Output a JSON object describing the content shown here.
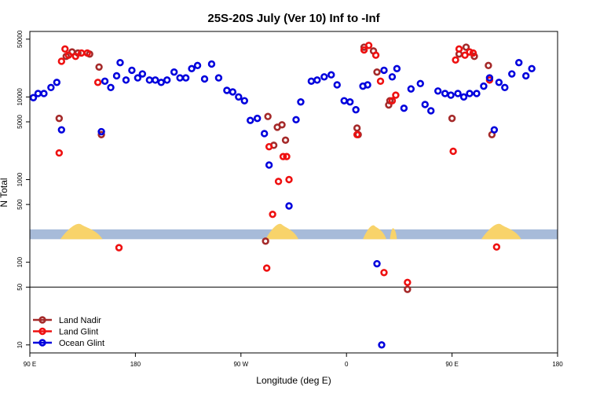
{
  "chart_data": {
    "type": "scatter",
    "title": "25S-20S July (Ver 10)   Inf to -Inf",
    "xlabel": "Longitude (deg E)",
    "ylabel": "N Total",
    "x_scale": "linear",
    "y_scale": "log",
    "xlim": [
      90,
      540
    ],
    "ylim": [
      8,
      62000
    ],
    "x_ticks": [
      {
        "value": 90,
        "label": "90 E"
      },
      {
        "value": 180,
        "label": "180"
      },
      {
        "value": 270,
        "label": "90 W"
      },
      {
        "value": 360,
        "label": "0"
      },
      {
        "value": 450,
        "label": "90 E"
      },
      {
        "value": 540,
        "label": "180"
      }
    ],
    "y_ticks": [
      {
        "value": 10,
        "label": "10"
      },
      {
        "value": 50,
        "label": "50"
      },
      {
        "value": 100,
        "label": "100"
      },
      {
        "value": 500,
        "label": "500"
      },
      {
        "value": 1000,
        "label": "1000"
      },
      {
        "value": 5000,
        "label": "5000"
      },
      {
        "value": 10000,
        "label": "10000"
      },
      {
        "value": 50000,
        "label": "50000"
      }
    ],
    "reference_line_y": 50,
    "map_band": {
      "y_range": [
        190,
        250
      ],
      "ocean_color": "#a7bbd9",
      "land_color": "#f8d36a",
      "land_segments": [
        [
          116,
          152
        ],
        [
          291,
          319
        ],
        [
          374,
          394
        ],
        [
          397,
          403
        ],
        [
          475,
          509
        ]
      ]
    },
    "legend_position": "bottom-left",
    "series": [
      {
        "name": "Land Nadir",
        "color": "#a52a2a",
        "points": [
          [
            115,
            5500
          ],
          [
            121,
            31000
          ],
          [
            126,
            35000
          ],
          [
            131,
            34000
          ],
          [
            141,
            33000
          ],
          [
            149,
            23000
          ],
          [
            151,
            3500
          ],
          [
            291,
            180
          ],
          [
            293,
            5800
          ],
          [
            298,
            2600
          ],
          [
            301,
            4300
          ],
          [
            305,
            4600
          ],
          [
            308,
            3000
          ],
          [
            369,
            4200
          ],
          [
            370,
            3500
          ],
          [
            375,
            40000
          ],
          [
            383,
            36000
          ],
          [
            386,
            20000
          ],
          [
            396,
            8000
          ],
          [
            397,
            9000
          ],
          [
            412,
            47
          ],
          [
            450,
            5500
          ],
          [
            456,
            33000
          ],
          [
            462,
            40000
          ],
          [
            469,
            31000
          ],
          [
            481,
            24000
          ],
          [
            484,
            3500
          ]
        ]
      },
      {
        "name": "Land Glint",
        "color": "#ee1111",
        "points": [
          [
            115,
            2100
          ],
          [
            117,
            27000
          ],
          [
            120,
            38000
          ],
          [
            123,
            32000
          ],
          [
            129,
            31000
          ],
          [
            134,
            34000
          ],
          [
            139,
            34000
          ],
          [
            148,
            15000
          ],
          [
            166,
            150
          ],
          [
            292,
            85
          ],
          [
            294,
            2500
          ],
          [
            297,
            380
          ],
          [
            302,
            950
          ],
          [
            306,
            1900
          ],
          [
            309,
            1900
          ],
          [
            311,
            1000
          ],
          [
            369,
            3500
          ],
          [
            375,
            37000
          ],
          [
            379,
            42000
          ],
          [
            385,
            32000
          ],
          [
            389,
            15500
          ],
          [
            392,
            75
          ],
          [
            399,
            9000
          ],
          [
            402,
            10500
          ],
          [
            412,
            57
          ],
          [
            451,
            2200
          ],
          [
            453,
            28000
          ],
          [
            456,
            38000
          ],
          [
            461,
            32000
          ],
          [
            465,
            35000
          ],
          [
            468,
            34000
          ],
          [
            482,
            16000
          ],
          [
            488,
            153
          ]
        ]
      },
      {
        "name": "Ocean Glint",
        "color": "#0000dd",
        "points": [
          [
            93,
            9800
          ],
          [
            97,
            11000
          ],
          [
            102,
            11000
          ],
          [
            108,
            13000
          ],
          [
            113,
            15000
          ],
          [
            117,
            4000
          ],
          [
            151,
            3800
          ],
          [
            154,
            15500
          ],
          [
            159,
            13000
          ],
          [
            164,
            18000
          ],
          [
            167,
            26000
          ],
          [
            172,
            16000
          ],
          [
            177,
            21000
          ],
          [
            182,
            17000
          ],
          [
            186,
            19000
          ],
          [
            192,
            16000
          ],
          [
            197,
            16000
          ],
          [
            202,
            15000
          ],
          [
            207,
            16000
          ],
          [
            213,
            20000
          ],
          [
            218,
            17000
          ],
          [
            223,
            17000
          ],
          [
            228,
            22000
          ],
          [
            233,
            24000
          ],
          [
            239,
            16500
          ],
          [
            245,
            25000
          ],
          [
            251,
            17000
          ],
          [
            258,
            12000
          ],
          [
            263,
            11500
          ],
          [
            268,
            10000
          ],
          [
            273,
            9000
          ],
          [
            278,
            5200
          ],
          [
            284,
            5500
          ],
          [
            290,
            3600
          ],
          [
            294,
            1500
          ],
          [
            311,
            480
          ],
          [
            317,
            5300
          ],
          [
            321,
            8700
          ],
          [
            330,
            15500
          ],
          [
            335,
            16000
          ],
          [
            341,
            17500
          ],
          [
            347,
            18500
          ],
          [
            352,
            14000
          ],
          [
            358,
            9000
          ],
          [
            363,
            8700
          ],
          [
            368,
            7000
          ],
          [
            374,
            13500
          ],
          [
            378,
            14000
          ],
          [
            386,
            96
          ],
          [
            390,
            10
          ],
          [
            392,
            21000
          ],
          [
            399,
            17500
          ],
          [
            403,
            22000
          ],
          [
            409,
            7300
          ],
          [
            415,
            12500
          ],
          [
            423,
            14500
          ],
          [
            427,
            8100
          ],
          [
            432,
            6800
          ],
          [
            438,
            11800
          ],
          [
            444,
            11000
          ],
          [
            449,
            10500
          ],
          [
            455,
            11000
          ],
          [
            460,
            10000
          ],
          [
            465,
            11000
          ],
          [
            471,
            11000
          ],
          [
            477,
            13500
          ],
          [
            482,
            17000
          ],
          [
            486,
            4000
          ],
          [
            490,
            15000
          ],
          [
            495,
            13000
          ],
          [
            501,
            19000
          ],
          [
            507,
            26000
          ],
          [
            513,
            18000
          ],
          [
            518,
            22000
          ]
        ]
      }
    ]
  }
}
